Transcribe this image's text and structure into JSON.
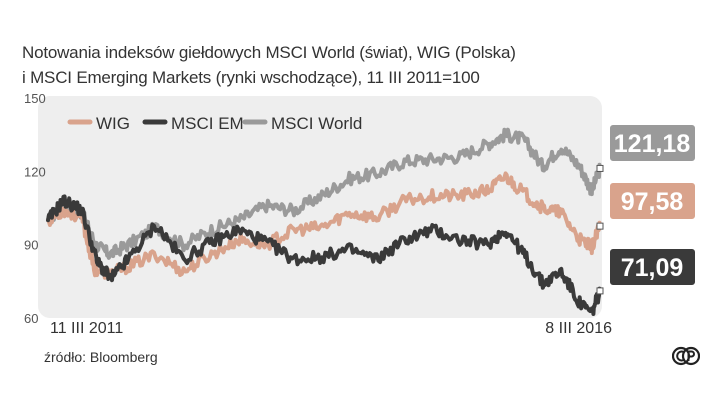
{
  "title_lines": [
    "Notowania indeksów giełdowych MSCI World (świat), WIG (Polska)",
    "i MSCI Emerging Markets (rynki wschodzące), 11 III 2011=100"
  ],
  "source": "źródło: Bloomberg",
  "logo_icon": "cp-logo-icon",
  "chart_data": {
    "type": "line",
    "title": "Notowania indeksów giełdowych MSCI World (świat), WIG (Polska) i MSCI Emerging Markets (rynki wschodzące), 11 III 2011=100",
    "ylim": [
      60,
      150
    ],
    "yticks": [
      60,
      90,
      120,
      150
    ],
    "xlim": [
      "2011-03-11",
      "2016-03-08"
    ],
    "x_tick_labels": [
      "11 III 2011",
      "8 III 2016"
    ],
    "grid": false,
    "legend_position": "top-left",
    "legend": [
      "WIG",
      "MSCI EM",
      "MSCI World"
    ],
    "series": [
      {
        "name": "MSCI World",
        "color": "#9a9a9a",
        "final_label": "121,18",
        "points": [
          [
            "2011-03-11",
            100
          ],
          [
            "2011-05-01",
            105
          ],
          [
            "2011-07-01",
            103
          ],
          [
            "2011-08-15",
            90
          ],
          [
            "2011-10-01",
            86
          ],
          [
            "2011-12-01",
            90
          ],
          [
            "2012-03-01",
            97
          ],
          [
            "2012-06-01",
            90
          ],
          [
            "2012-09-01",
            96
          ],
          [
            "2012-12-01",
            100
          ],
          [
            "2013-03-01",
            106
          ],
          [
            "2013-06-01",
            104
          ],
          [
            "2013-09-01",
            110
          ],
          [
            "2013-12-01",
            117
          ],
          [
            "2014-03-01",
            119
          ],
          [
            "2014-06-01",
            124
          ],
          [
            "2014-09-01",
            125
          ],
          [
            "2014-12-01",
            126
          ],
          [
            "2015-03-01",
            131
          ],
          [
            "2015-05-01",
            135
          ],
          [
            "2015-07-01",
            133
          ],
          [
            "2015-09-01",
            122
          ],
          [
            "2015-11-01",
            130
          ],
          [
            "2016-01-01",
            122
          ],
          [
            "2016-02-10",
            112
          ],
          [
            "2016-03-08",
            121.18
          ]
        ]
      },
      {
        "name": "WIG",
        "color": "#d9a38c",
        "final_label": "97,58",
        "points": [
          [
            "2011-03-11",
            100
          ],
          [
            "2011-05-01",
            104
          ],
          [
            "2011-07-01",
            101
          ],
          [
            "2011-08-10",
            80
          ],
          [
            "2011-10-01",
            78
          ],
          [
            "2011-12-01",
            81
          ],
          [
            "2012-03-01",
            86
          ],
          [
            "2012-06-01",
            79
          ],
          [
            "2012-09-01",
            86
          ],
          [
            "2012-12-01",
            92
          ],
          [
            "2013-03-01",
            90
          ],
          [
            "2013-06-01",
            96
          ],
          [
            "2013-09-01",
            97
          ],
          [
            "2013-12-01",
            103
          ],
          [
            "2014-03-01",
            101
          ],
          [
            "2014-06-01",
            108
          ],
          [
            "2014-09-01",
            110
          ],
          [
            "2014-12-01",
            110
          ],
          [
            "2015-03-01",
            112
          ],
          [
            "2015-05-01",
            118
          ],
          [
            "2015-07-01",
            111
          ],
          [
            "2015-09-01",
            105
          ],
          [
            "2015-11-01",
            103
          ],
          [
            "2016-01-01",
            92
          ],
          [
            "2016-02-10",
            89
          ],
          [
            "2016-03-08",
            97.58
          ]
        ]
      },
      {
        "name": "MSCI EM",
        "color": "#3a3a3a",
        "final_label": "71,09",
        "points": [
          [
            "2011-03-11",
            100
          ],
          [
            "2011-05-01",
            108
          ],
          [
            "2011-07-01",
            104
          ],
          [
            "2011-08-20",
            83
          ],
          [
            "2011-10-05",
            76
          ],
          [
            "2011-12-01",
            84
          ],
          [
            "2012-03-01",
            98
          ],
          [
            "2012-06-01",
            84
          ],
          [
            "2012-09-01",
            91
          ],
          [
            "2012-12-01",
            96
          ],
          [
            "2013-03-01",
            91
          ],
          [
            "2013-06-01",
            84
          ],
          [
            "2013-09-01",
            85
          ],
          [
            "2013-12-01",
            88
          ],
          [
            "2014-03-01",
            84
          ],
          [
            "2014-06-01",
            92
          ],
          [
            "2014-09-01",
            96
          ],
          [
            "2014-12-01",
            92
          ],
          [
            "2015-03-01",
            90
          ],
          [
            "2015-05-01",
            96
          ],
          [
            "2015-07-01",
            86
          ],
          [
            "2015-09-01",
            74
          ],
          [
            "2015-11-01",
            79
          ],
          [
            "2016-01-01",
            66
          ],
          [
            "2016-02-10",
            62
          ],
          [
            "2016-03-08",
            71.09
          ]
        ]
      }
    ]
  }
}
